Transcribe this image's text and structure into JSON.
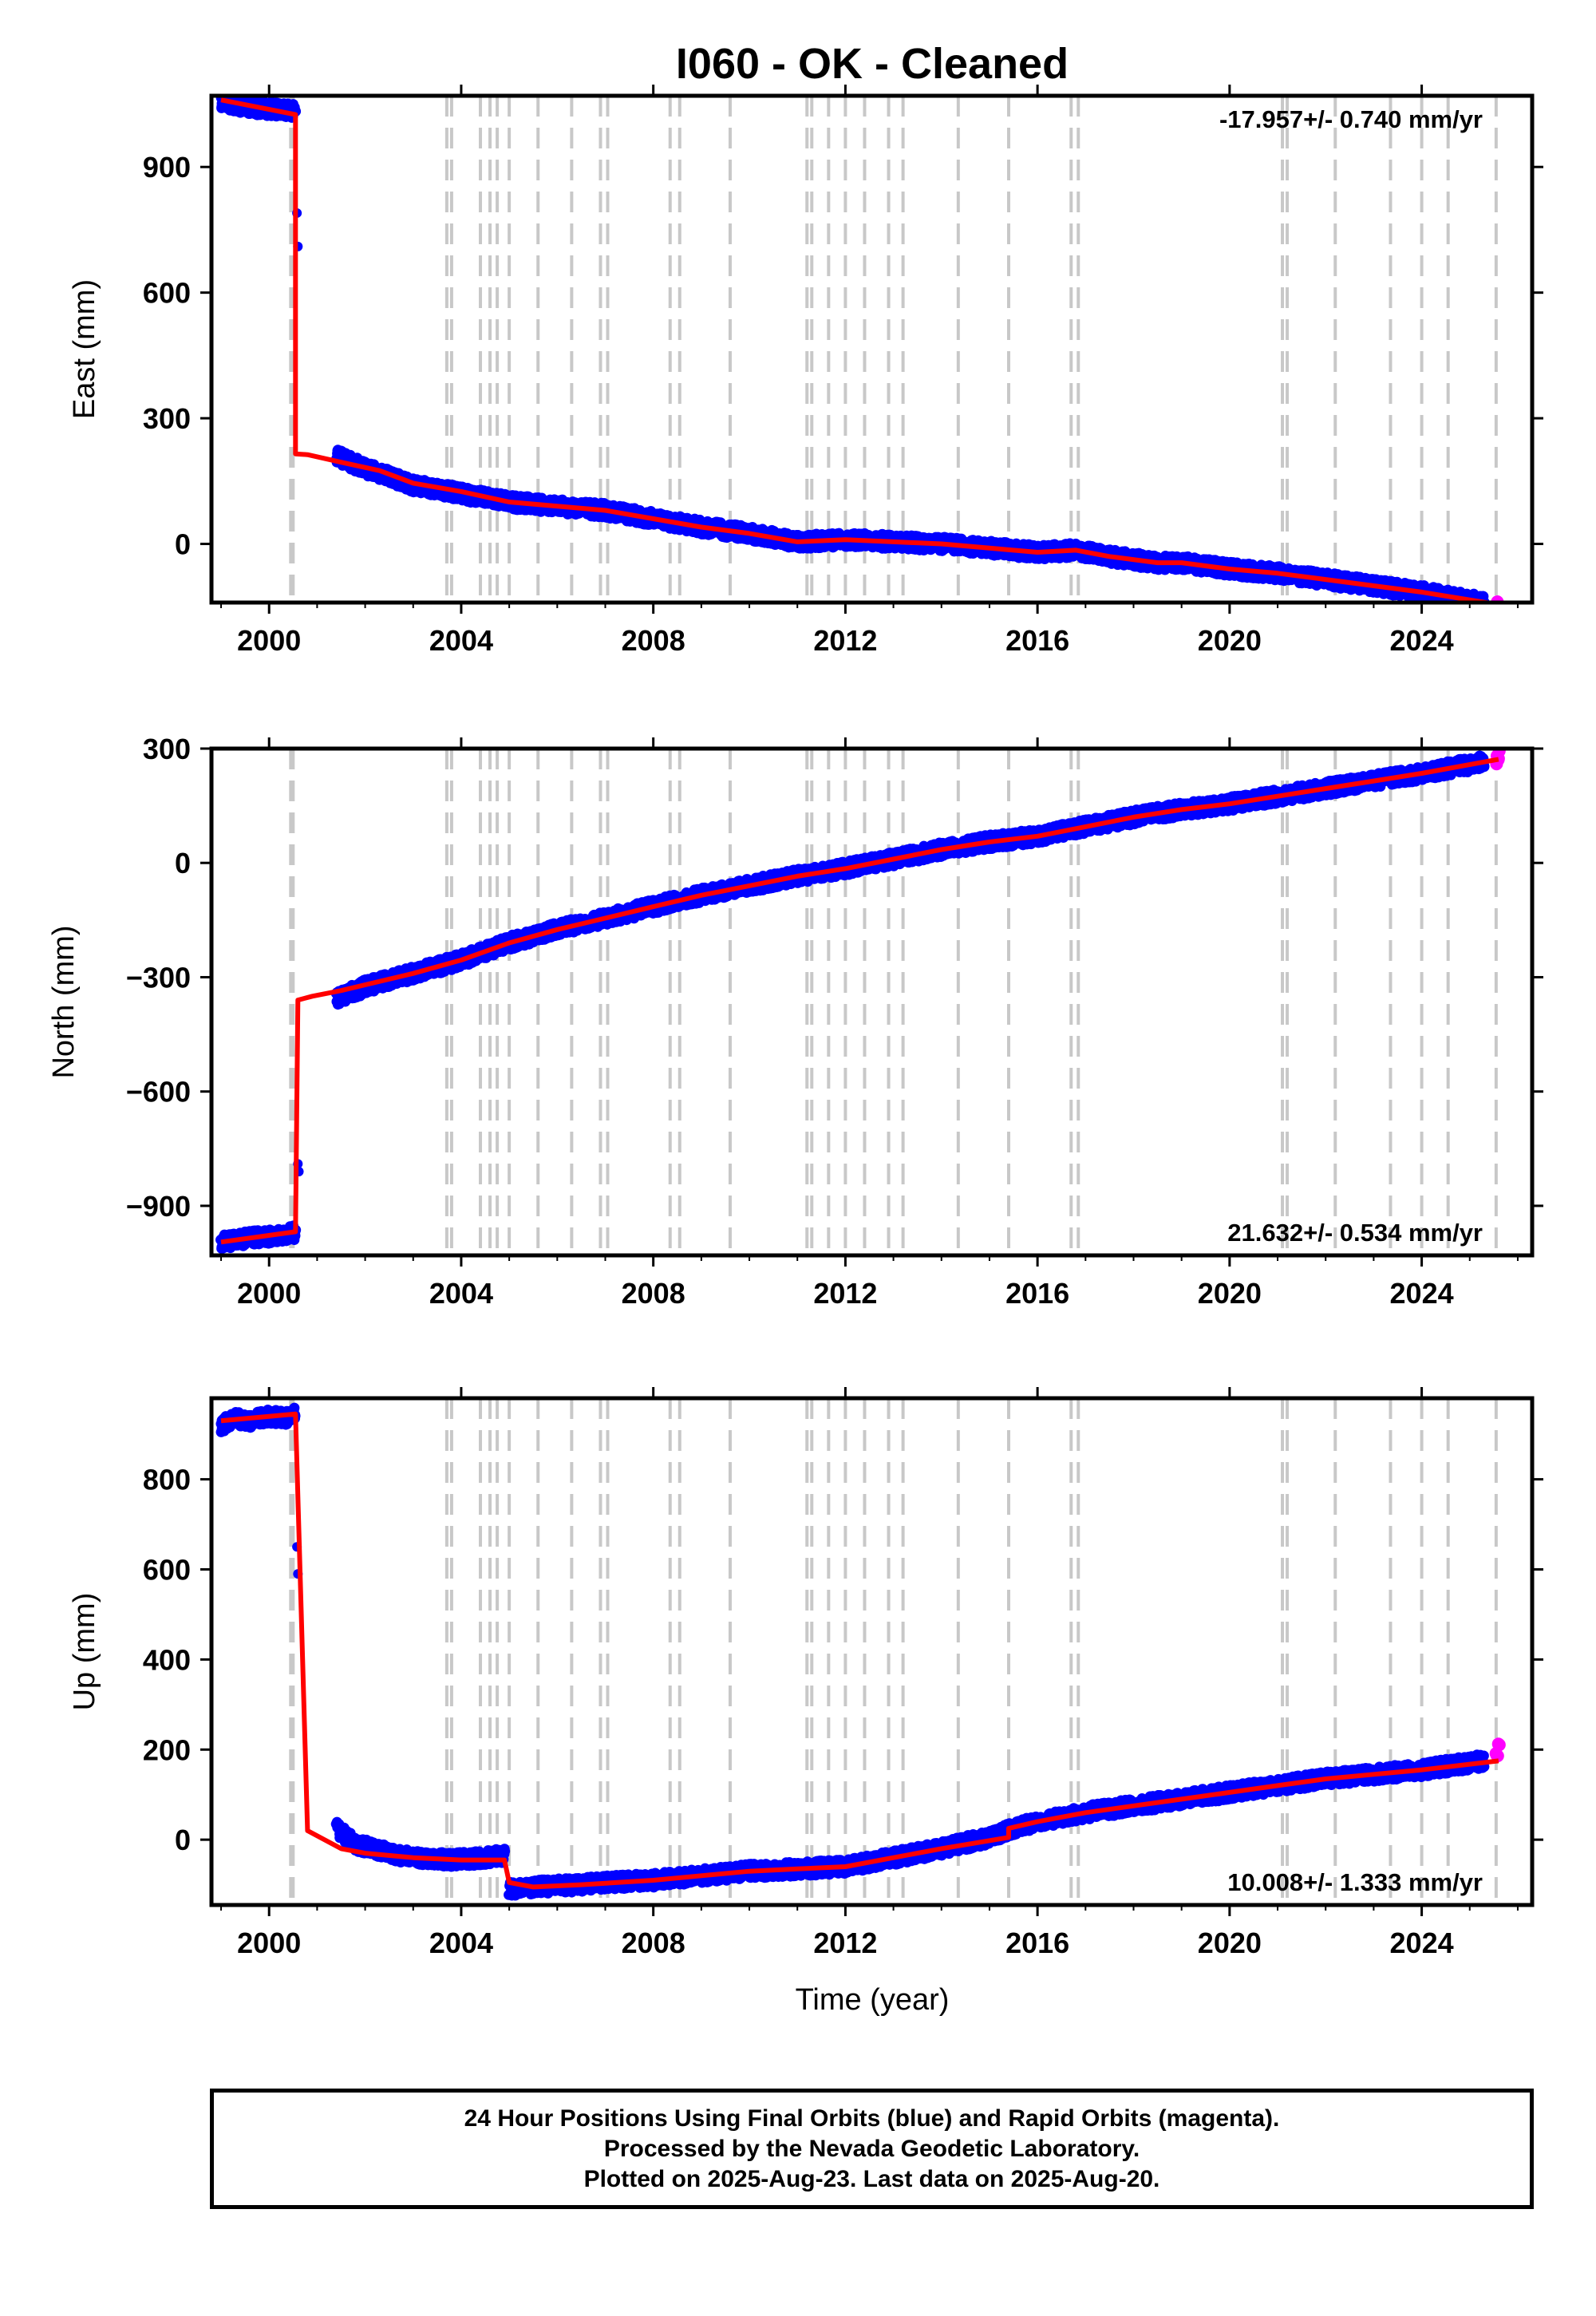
{
  "title": "I060  - OK - Cleaned",
  "xlabel": "Time (year)",
  "footer": {
    "line1": "24 Hour Positions Using Final Orbits (blue) and Rapid Orbits (magenta).",
    "line2": "Processed by the Nevada Geodetic Laboratory.",
    "line3": "Plotted on 2025-Aug-23. Last data on 2025-Aug-20."
  },
  "colors": {
    "final_orbits": "#0000ff",
    "rapid_orbits": "#ff00ff",
    "model": "#ff0000",
    "event_lines": "#c8c8c8",
    "frame": "#000000"
  },
  "chart_data": [
    {
      "type": "scatter",
      "ylabel": "East (mm)",
      "rate_label": "-17.957+/- 0.740 mm/yr",
      "rate_position": "top-right",
      "xlim": [
        1998.8,
        2026.3
      ],
      "ylim": [
        -140,
        1070
      ],
      "xticks": [
        2000,
        2004,
        2008,
        2012,
        2016,
        2020,
        2024
      ],
      "xtick_labels": [
        "2000",
        "2004",
        "2008",
        "2012",
        "2016",
        "2020",
        "2024"
      ],
      "yticks": [
        0,
        300,
        600,
        900
      ],
      "ytick_labels": [
        "0",
        "300",
        "600",
        "900"
      ],
      "grid": false,
      "series": [
        {
          "role": "final",
          "segments": [
            {
              "x": [
                1999.0,
                1999.2,
                1999.5,
                1999.8,
                2000.1,
                2000.4,
                2000.55
              ],
              "y": [
                1058,
                1050,
                1045,
                1040,
                1038,
                1035,
                1032
              ]
            },
            {
              "x": [
                2000.58
              ],
              "y": [
                790
              ]
            },
            {
              "x": [
                2000.6
              ],
              "y": [
                710
              ]
            },
            {
              "x": [
                2001.4,
                2002.0,
                2003.0,
                2004.0,
                2005.0,
                2006.0,
                2007.0,
                2008.0,
                2009.0,
                2010.0,
                2011.0,
                2012.0,
                2013.0,
                2014.0,
                2015.0,
                2016.0,
                2016.8,
                2017.5,
                2018.5,
                2019.0,
                2020.0,
                2021.0,
                2022.0,
                2023.0,
                2024.0,
                2025.3
              ],
              "y": [
                210,
                180,
                140,
                120,
                100,
                90,
                80,
                60,
                40,
                25,
                5,
                10,
                5,
                0,
                -10,
                -20,
                -15,
                -30,
                -45,
                -45,
                -60,
                -70,
                -85,
                -100,
                -115,
                -140
              ]
            }
          ]
        },
        {
          "role": "rapid",
          "segments": [
            {
              "x": [
                2025.55,
                2025.62
              ],
              "y": [
                -140,
                -150
              ]
            }
          ]
        },
        {
          "role": "model",
          "x": [
            1999.0,
            2000.55,
            2000.55,
            2000.8,
            2001.5,
            2002.3,
            2003.0,
            2004.0,
            2005.0,
            2006.0,
            2007.0,
            2008.0,
            2009.0,
            2010.0,
            2011.0,
            2012.0,
            2013.0,
            2014.0,
            2015.0,
            2016.0,
            2016.8,
            2017.5,
            2018.5,
            2019.0,
            2020.0,
            2021.0,
            2022.0,
            2023.0,
            2024.0,
            2025.6
          ],
          "y": [
            1060,
            1025,
            215,
            213,
            195,
            175,
            145,
            125,
            100,
            90,
            80,
            60,
            40,
            25,
            5,
            10,
            5,
            0,
            -10,
            -20,
            -15,
            -30,
            -45,
            -45,
            -60,
            -70,
            -85,
            -100,
            -115,
            -145
          ]
        }
      ]
    },
    {
      "type": "scatter",
      "ylabel": "North (mm)",
      "rate_label": "21.632+/- 0.534 mm/yr",
      "rate_position": "bottom-right",
      "xlim": [
        1998.8,
        2026.3
      ],
      "ylim": [
        -1030,
        300
      ],
      "xticks": [
        2000,
        2004,
        2008,
        2012,
        2016,
        2020,
        2024
      ],
      "xtick_labels": [
        "2000",
        "2004",
        "2008",
        "2012",
        "2016",
        "2020",
        "2024"
      ],
      "yticks": [
        -900,
        -600,
        -300,
        0,
        300
      ],
      "ytick_labels": [
        "−900",
        "−600",
        "−300",
        "0",
        "300"
      ],
      "grid": false,
      "series": [
        {
          "role": "final",
          "segments": [
            {
              "x": [
                1999.0,
                1999.3,
                1999.6,
                2000.0,
                2000.3,
                2000.55
              ],
              "y": [
                -995,
                -990,
                -985,
                -980,
                -975,
                -970
              ]
            },
            {
              "x": [
                2000.6
              ],
              "y": [
                -790
              ]
            },
            {
              "x": [
                2000.62
              ],
              "y": [
                -810
              ]
            },
            {
              "x": [
                2001.4,
                2002.0,
                2003.0,
                2004.0,
                2005.0,
                2006.0,
                2007.0,
                2008.0,
                2009.0,
                2010.0,
                2011.0,
                2012.0,
                2013.0,
                2014.0,
                2015.0,
                2016.0,
                2017.0,
                2018.0,
                2019.0,
                2020.0,
                2021.0,
                2022.0,
                2023.0,
                2024.0,
                2025.3
              ],
              "y": [
                -355,
                -325,
                -290,
                -255,
                -210,
                -175,
                -145,
                -115,
                -85,
                -60,
                -35,
                -15,
                10,
                35,
                55,
                70,
                95,
                120,
                140,
                155,
                175,
                195,
                215,
                235,
                265
              ]
            }
          ]
        },
        {
          "role": "rapid",
          "segments": [
            {
              "x": [
                2025.55,
                2025.62
              ],
              "y": [
                275,
                280
              ]
            }
          ]
        },
        {
          "role": "model",
          "x": [
            1999.0,
            2000.55,
            2000.6,
            2000.9,
            2001.5,
            2002.0,
            2003.0,
            2004.0,
            2005.0,
            2006.0,
            2007.0,
            2008.0,
            2009.0,
            2010.0,
            2011.0,
            2012.0,
            2013.0,
            2014.0,
            2015.0,
            2016.0,
            2017.0,
            2018.0,
            2019.0,
            2020.0,
            2021.0,
            2022.0,
            2023.0,
            2024.0,
            2025.6
          ],
          "y": [
            -995,
            -968,
            -360,
            -350,
            -335,
            -320,
            -290,
            -255,
            -210,
            -175,
            -145,
            -115,
            -85,
            -60,
            -35,
            -15,
            10,
            35,
            55,
            70,
            95,
            120,
            140,
            155,
            175,
            195,
            215,
            235,
            272
          ]
        }
      ]
    },
    {
      "type": "scatter",
      "ylabel": "Up (mm)",
      "rate_label": "10.008+/- 1.333 mm/yr",
      "rate_position": "bottom-right",
      "xlim": [
        1998.8,
        2026.3
      ],
      "ylim": [
        -145,
        980
      ],
      "xticks": [
        2000,
        2004,
        2008,
        2012,
        2016,
        2020,
        2024
      ],
      "xtick_labels": [
        "2000",
        "2004",
        "2008",
        "2012",
        "2016",
        "2020",
        "2024"
      ],
      "yticks": [
        0,
        200,
        400,
        600,
        800
      ],
      "ytick_labels": [
        "0",
        "200",
        "400",
        "600",
        "800"
      ],
      "grid": false,
      "series": [
        {
          "role": "final",
          "segments": [
            {
              "x": [
                1999.0,
                1999.3,
                1999.6,
                2000.0,
                2000.3,
                2000.55
              ],
              "y": [
                920,
                935,
                930,
                940,
                935,
                945
              ]
            },
            {
              "x": [
                2000.58
              ],
              "y": [
                650
              ]
            },
            {
              "x": [
                2000.6
              ],
              "y": [
                590
              ]
            },
            {
              "x": [
                2001.4,
                2001.8,
                2002.5,
                2003.0,
                2003.8,
                2004.5,
                2004.9
              ],
              "y": [
                25,
                -10,
                -30,
                -40,
                -45,
                -40,
                -35
              ]
            },
            {
              "x": [
                2005.0,
                2005.5,
                2006.5,
                2007.0,
                2008.0,
                2009.0,
                2010.0,
                2011.0,
                2012.0,
                2013.0,
                2014.0,
                2015.0,
                2015.4,
                2016.0,
                2017.0,
                2018.0,
                2019.0,
                2020.0,
                2021.0,
                2022.0,
                2023.0,
                2024.0,
                2025.3
              ],
              "y": [
                -110,
                -105,
                -100,
                -95,
                -90,
                -80,
                -70,
                -65,
                -60,
                -40,
                -20,
                5,
                20,
                40,
                60,
                75,
                90,
                105,
                120,
                135,
                145,
                155,
                175
              ]
            }
          ]
        },
        {
          "role": "rapid",
          "segments": [
            {
              "x": [
                2025.55,
                2025.62
              ],
              "y": [
                190,
                200
              ]
            }
          ]
        },
        {
          "role": "model",
          "x": [
            1999.0,
            2000.55,
            2000.8,
            2001.5,
            2002.0,
            2003.0,
            2004.0,
            2004.9,
            2005.0,
            2005.5,
            2006.5,
            2008.0,
            2009.0,
            2010.0,
            2011.0,
            2012.0,
            2013.0,
            2014.0,
            2015.4,
            2015.4,
            2016.0,
            2017.0,
            2018.0,
            2019.0,
            2020.0,
            2021.0,
            2022.0,
            2023.0,
            2024.0,
            2025.6
          ],
          "y": [
            930,
            945,
            20,
            -20,
            -30,
            -40,
            -45,
            -45,
            -95,
            -105,
            -100,
            -90,
            -80,
            -70,
            -65,
            -60,
            -40,
            -20,
            5,
            25,
            40,
            60,
            75,
            90,
            105,
            120,
            135,
            145,
            155,
            175
          ]
        }
      ]
    }
  ],
  "event_lines": [
    2000.45,
    2000.5,
    2003.7,
    2003.8,
    2004.4,
    2004.6,
    2004.75,
    2005.0,
    2005.6,
    2006.3,
    2006.9,
    2007.05,
    2008.35,
    2008.55,
    2009.6,
    2011.2,
    2011.3,
    2011.65,
    2012.0,
    2012.4,
    2012.9,
    2013.2,
    2014.35,
    2015.4,
    2016.7,
    2016.85,
    2021.1,
    2021.2,
    2022.2,
    2023.35,
    2024.0,
    2024.55,
    2025.55
  ]
}
